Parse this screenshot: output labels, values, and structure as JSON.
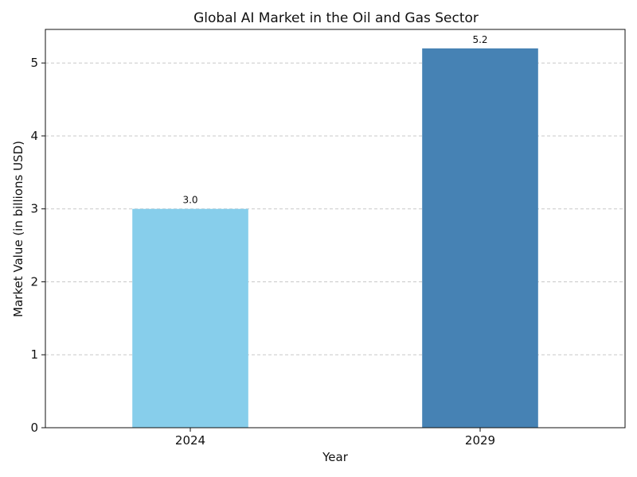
{
  "chart_data": {
    "type": "bar",
    "title": "Global AI Market in the Oil and Gas Sector",
    "xlabel": "Year",
    "ylabel": "Market Value (in billions USD)",
    "categories": [
      "2024",
      "2029"
    ],
    "values": [
      3.0,
      5.2
    ],
    "value_labels": [
      "3.0",
      "5.2"
    ],
    "colors": [
      "#87CEEB",
      "#4682B4"
    ],
    "ylim": [
      0,
      5.46
    ],
    "yticks": [
      0,
      1,
      2,
      3,
      4,
      5
    ],
    "grid": "y-dashed",
    "legend": "none"
  }
}
